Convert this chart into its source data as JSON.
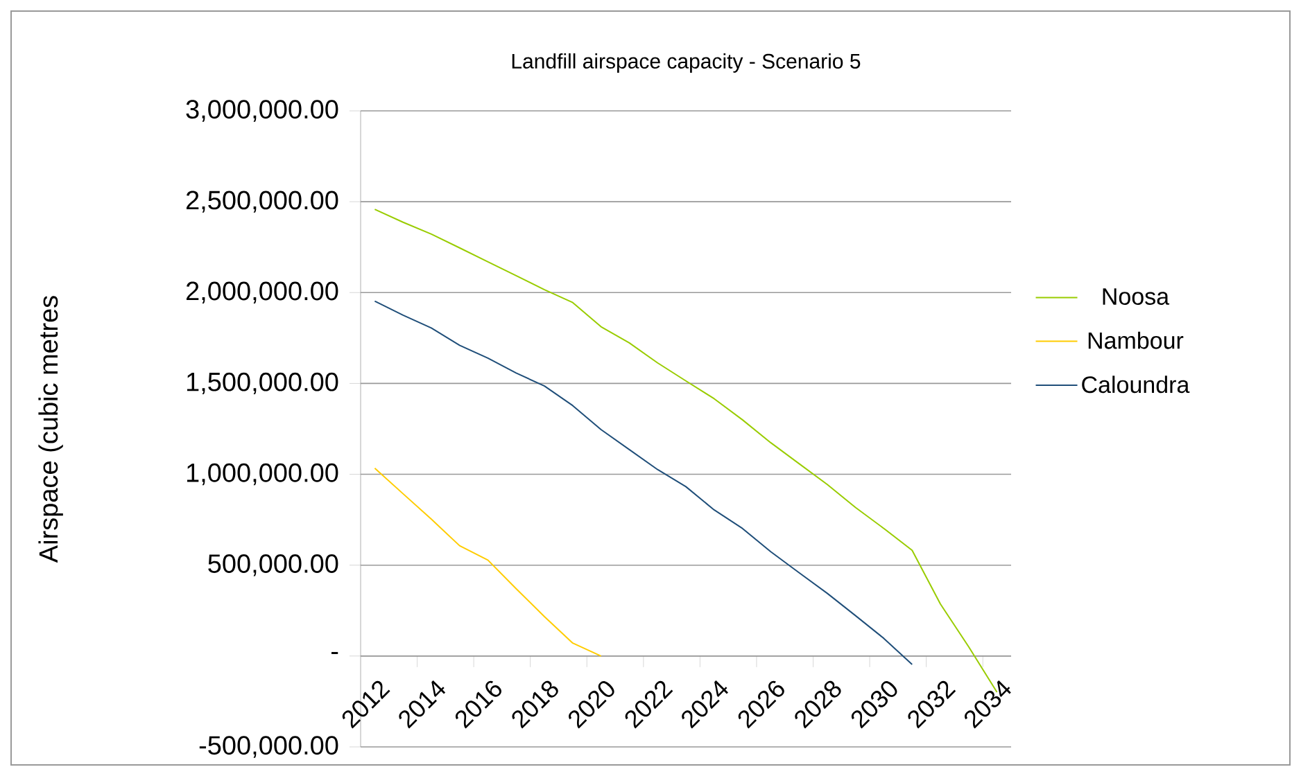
{
  "chart_data": {
    "type": "line",
    "title": "Landfill airspace  capacity - Scenario 5",
    "ylabel": "Airspace (cubic metres",
    "categories": [
      "2012",
      null,
      "2014",
      null,
      "2016",
      null,
      "2018",
      null,
      "2020",
      null,
      "2022",
      null,
      "2024",
      null,
      "2026",
      null,
      "2028",
      null,
      "2030",
      null,
      "2032",
      null,
      "2034"
    ],
    "series": [
      {
        "name": "Noosa",
        "color": "#99cc00",
        "values": [
          2458000,
          2387000,
          2322000,
          2246000,
          2169000,
          2093000,
          2016000,
          1945000,
          1812000,
          1723000,
          1613000,
          1514000,
          1416000,
          1300000,
          1174000,
          1059000,
          944000,
          817000,
          702000,
          582000,
          286000,
          51000,
          -199000
        ]
      },
      {
        "name": "Nambour",
        "color": "#ffcc00",
        "values": [
          1034000,
          893000,
          753000,
          607000,
          528000,
          370000,
          217000,
          71000,
          0,
          null,
          null,
          null,
          null,
          null,
          null,
          null,
          null,
          null,
          null,
          null,
          null,
          null,
          null
        ]
      },
      {
        "name": "Caloundra",
        "color": "#1f4e79",
        "values": [
          1953000,
          1876000,
          1805000,
          1710000,
          1639000,
          1557000,
          1486000,
          1378000,
          1246000,
          1136000,
          1026000,
          932000,
          804000,
          702000,
          574000,
          459000,
          345000,
          222000,
          97000,
          -46000,
          null,
          null,
          null
        ]
      }
    ],
    "ylim": [
      -500000,
      3000000
    ],
    "yticks": [
      {
        "value": -500000,
        "label": "-500,000.00"
      },
      {
        "value": 0,
        "label": "-"
      },
      {
        "value": 500000,
        "label": "500,000.00"
      },
      {
        "value": 1000000,
        "label": "1,000,000.00"
      },
      {
        "value": 1500000,
        "label": "1,500,000.00"
      },
      {
        "value": 2000000,
        "label": "2,000,000.00"
      },
      {
        "value": 2500000,
        "label": "2,500,000.00"
      },
      {
        "value": 3000000,
        "label": "3,000,000.00"
      }
    ],
    "grid": "y",
    "legend": "right",
    "marker": "none",
    "line_style": "solid"
  }
}
